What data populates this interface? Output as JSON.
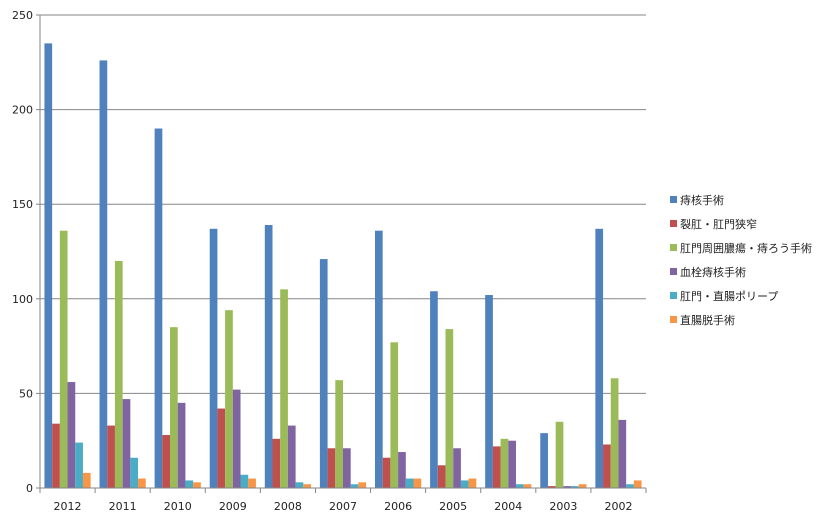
{
  "chart_data": {
    "type": "bar",
    "categories": [
      "2012",
      "2011",
      "2010",
      "2009",
      "2008",
      "2007",
      "2006",
      "2005",
      "2004",
      "2003",
      "2002"
    ],
    "ylim": [
      0,
      250
    ],
    "yticks": [
      0,
      50,
      100,
      150,
      200,
      250
    ],
    "grid": "horizontal",
    "legend_position": "right",
    "series": [
      {
        "name": "痔核手術",
        "color": "#4f81bd",
        "values": [
          235,
          226,
          190,
          137,
          139,
          121,
          136,
          104,
          102,
          29,
          137
        ]
      },
      {
        "name": "裂肛・肛門狭窄",
        "color": "#c0504d",
        "values": [
          34,
          33,
          28,
          42,
          26,
          21,
          16,
          12,
          22,
          1,
          23
        ]
      },
      {
        "name": "肛門周囲膿瘍・痔ろう手術",
        "color": "#9bbb59",
        "values": [
          136,
          120,
          85,
          94,
          105,
          57,
          77,
          84,
          26,
          35,
          58
        ]
      },
      {
        "name": "血栓痔核手術",
        "color": "#8064a2",
        "values": [
          56,
          47,
          45,
          52,
          33,
          21,
          19,
          21,
          25,
          1,
          36
        ]
      },
      {
        "name": "肛門・直腸ポリープ",
        "color": "#4bacc6",
        "values": [
          24,
          16,
          4,
          7,
          3,
          2,
          5,
          4,
          2,
          1,
          2
        ]
      },
      {
        "name": "直腸脱手術",
        "color": "#f79646",
        "values": [
          8,
          5,
          3,
          5,
          2,
          3,
          5,
          5,
          2,
          2,
          4
        ]
      }
    ]
  }
}
